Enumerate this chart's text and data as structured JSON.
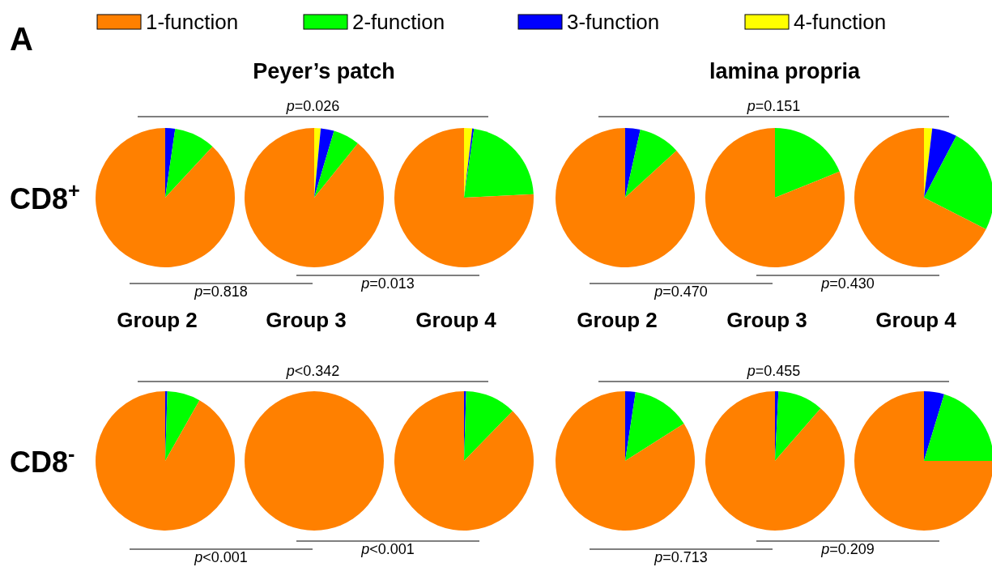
{
  "chart_data": [
    {
      "type": "pie",
      "title": "A",
      "ylabel": "CD8$^{+}$",
      "xlabel": "Group 2",
      "legend": "top",
      "categories": [
        "1-function",
        "2-function",
        "3-function",
        "4-function"
      ],
      "values": [
        88.1,
        9.6,
        2.3,
        0
      ],
      "colors": [
        "#ff8000",
        "#00ff00",
        "#0000ff",
        "#ffff00"
      ],
      "annotations": [
        "p=0.818"
      ]
    },
    {
      "type": "pie",
      "title": "Peyer’s patch",
      "xlabel": "Group 3",
      "categories": [
        null,
        null,
        null,
        null
      ],
      "values": [
        89.2,
        6.2,
        3.1,
        1.5
      ],
      "colors": [
        "#ff8000",
        "#00ff00",
        "#0000ff",
        "#ffff00"
      ],
      "annotations": [
        "p=0.026"
      ]
    },
    {
      "type": "pie",
      "xlabel": "Group 4",
      "categories": [
        null,
        null,
        null,
        null
      ],
      "values": [
        75.8,
        21.9,
        0.4,
        1.9
      ],
      "colors": [
        "#ff8000",
        "#00ff00",
        "#0000ff",
        "#ffff00"
      ],
      "annotations": [
        "p=0.013"
      ]
    },
    {
      "type": "pie",
      "xlabel": "Group 2",
      "categories": [
        null,
        null,
        null,
        null
      ],
      "values": [
        86.8,
        9.7,
        3.5,
        0
      ],
      "colors": [
        "#ff8000",
        "#00ff00",
        "#0000ff",
        "#ffff00"
      ],
      "annotations": [
        "p=0.470"
      ]
    },
    {
      "type": "pie",
      "title": "lamina propria",
      "xlabel": "Group 3",
      "categories": [
        null,
        null,
        null,
        null
      ],
      "values": [
        81.1,
        18.9,
        0,
        0
      ],
      "colors": [
        "#ff8000",
        "#00ff00",
        "#0000ff",
        "#ffff00"
      ],
      "annotations": [
        "p=0.151"
      ]
    },
    {
      "type": "pie",
      "xlabel": "Group 4",
      "categories": [
        null,
        null,
        null,
        null
      ],
      "values": [
        67.5,
        24.8,
        5.8,
        1.9
      ],
      "colors": [
        "#ff8000",
        "#00ff00",
        "#0000ff",
        "#ffff00"
      ],
      "annotations": [
        "p=0.430"
      ]
    },
    {
      "type": "pie",
      "ylabel": "CD8$^{-}$",
      "categories": [
        null,
        null,
        null,
        null
      ],
      "values": [
        91.8,
        7.7,
        0.5,
        0
      ],
      "colors": [
        "#ff8000",
        "#00ff00",
        "#0000ff",
        "#ffff00"
      ],
      "annotations": [
        "p<0.001"
      ]
    },
    {
      "type": "pie",
      "categories": [
        null,
        null,
        null,
        null
      ],
      "values": [
        100,
        0,
        0,
        0
      ],
      "colors": [
        "#ff8000",
        "#00ff00",
        "#0000ff",
        "#ffff00"
      ],
      "annotations": [
        "p<0.342"
      ]
    },
    {
      "type": "pie",
      "categories": [
        null,
        null,
        null,
        null
      ],
      "values": [
        87.7,
        11.8,
        0.5,
        0
      ],
      "colors": [
        "#ff8000",
        "#00ff00",
        "#0000ff",
        "#ffff00"
      ],
      "annotations": [
        "p<0.001"
      ]
    },
    {
      "type": "pie",
      "categories": [
        null,
        null,
        null,
        null
      ],
      "values": [
        84,
        13.6,
        2.4,
        0
      ],
      "colors": [
        "#ff8000",
        "#00ff00",
        "#0000ff",
        "#ffff00"
      ],
      "annotations": [
        "p=0.713"
      ]
    },
    {
      "type": "pie",
      "categories": [
        null,
        null,
        null,
        null
      ],
      "values": [
        88.6,
        10.6,
        0.8,
        0
      ],
      "colors": [
        "#ff8000",
        "#00ff00",
        "#0000ff",
        "#ffff00"
      ],
      "annotations": [
        "p=0.455"
      ]
    },
    {
      "type": "pie",
      "categories": [
        null,
        null,
        null,
        null
      ],
      "values": [
        75,
        20.3,
        4.7,
        0
      ],
      "colors": [
        "#ff8000",
        "#00ff00",
        "#0000ff",
        "#ffff00"
      ],
      "annotations": [
        "p=0.209"
      ]
    }
  ]
}
